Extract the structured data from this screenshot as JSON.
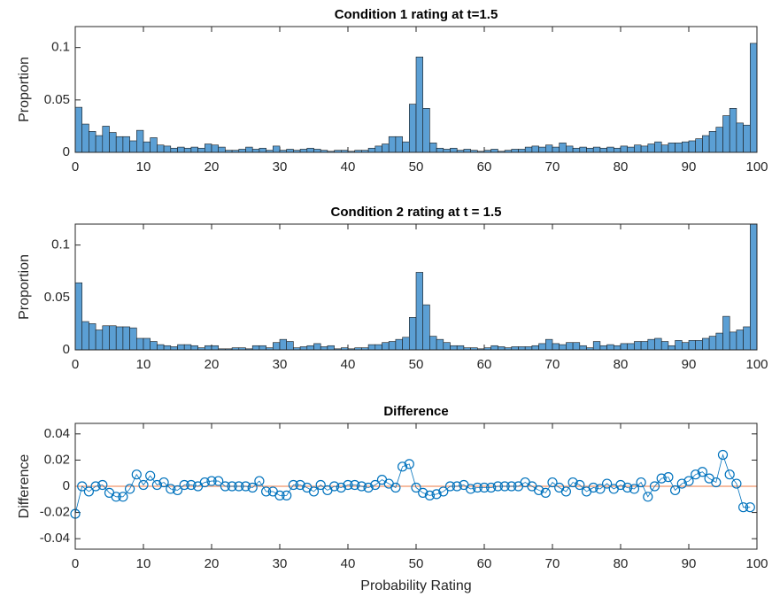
{
  "chart_data": [
    {
      "type": "histogram",
      "title": "Condition 1 rating at t=1.5",
      "ylabel": "Proportion",
      "color": "#5b9fd4",
      "bins": [
        0,
        1,
        2,
        3,
        4,
        5,
        6,
        7,
        8,
        9,
        10,
        11,
        12,
        13,
        14,
        15,
        16,
        17,
        18,
        19,
        20,
        21,
        22,
        23,
        24,
        25,
        26,
        27,
        28,
        29,
        30,
        31,
        32,
        33,
        34,
        35,
        36,
        37,
        38,
        39,
        40,
        41,
        42,
        43,
        44,
        45,
        46,
        47,
        48,
        49,
        50,
        51,
        52,
        53,
        54,
        55,
        56,
        57,
        58,
        59,
        60,
        61,
        62,
        63,
        64,
        65,
        66,
        67,
        68,
        69,
        70,
        71,
        72,
        73,
        74,
        75,
        76,
        77,
        78,
        79,
        80,
        81,
        82,
        83,
        84,
        85,
        86,
        87,
        88,
        89,
        90,
        91,
        92,
        93,
        94,
        95,
        96,
        97,
        98,
        99,
        100
      ],
      "values": [
        0.043,
        0.027,
        0.02,
        0.016,
        0.025,
        0.019,
        0.015,
        0.015,
        0.011,
        0.021,
        0.01,
        0.014,
        0.007,
        0.006,
        0.004,
        0.005,
        0.004,
        0.005,
        0.004,
        0.008,
        0.007,
        0.005,
        0.002,
        0.002,
        0.003,
        0.005,
        0.003,
        0.004,
        0.002,
        0.006,
        0.002,
        0.003,
        0.002,
        0.003,
        0.004,
        0.003,
        0.002,
        0.001,
        0.002,
        0.002,
        0.001,
        0.002,
        0.002,
        0.004,
        0.006,
        0.008,
        0.015,
        0.015,
        0.01,
        0.046,
        0.091,
        0.042,
        0.009,
        0.004,
        0.003,
        0.004,
        0.002,
        0.003,
        0.002,
        0.001,
        0.002,
        0.003,
        0.001,
        0.002,
        0.003,
        0.003,
        0.005,
        0.006,
        0.005,
        0.007,
        0.005,
        0.009,
        0.006,
        0.004,
        0.005,
        0.004,
        0.005,
        0.004,
        0.005,
        0.004,
        0.006,
        0.005,
        0.007,
        0.006,
        0.008,
        0.01,
        0.007,
        0.009,
        0.009,
        0.01,
        0.011,
        0.013,
        0.016,
        0.02,
        0.024,
        0.035,
        0.042,
        0.028,
        0.026,
        0.104
      ],
      "xlim": [
        0,
        100
      ],
      "xticks": [
        0,
        10,
        20,
        30,
        40,
        50,
        60,
        70,
        80,
        90,
        100
      ],
      "ylim": [
        0,
        0.12
      ],
      "yticks": [
        0,
        0.05,
        0.1
      ]
    },
    {
      "type": "histogram",
      "title": "Condition 2 rating at t = 1.5",
      "ylabel": "Proportion",
      "color": "#5b9fd4",
      "bins": [
        0,
        1,
        2,
        3,
        4,
        5,
        6,
        7,
        8,
        9,
        10,
        11,
        12,
        13,
        14,
        15,
        16,
        17,
        18,
        19,
        20,
        21,
        22,
        23,
        24,
        25,
        26,
        27,
        28,
        29,
        30,
        31,
        32,
        33,
        34,
        35,
        36,
        37,
        38,
        39,
        40,
        41,
        42,
        43,
        44,
        45,
        46,
        47,
        48,
        49,
        50,
        51,
        52,
        53,
        54,
        55,
        56,
        57,
        58,
        59,
        60,
        61,
        62,
        63,
        64,
        65,
        66,
        67,
        68,
        69,
        70,
        71,
        72,
        73,
        74,
        75,
        76,
        77,
        78,
        79,
        80,
        81,
        82,
        83,
        84,
        85,
        86,
        87,
        88,
        89,
        90,
        91,
        92,
        93,
        94,
        95,
        96,
        97,
        98,
        99,
        100
      ],
      "values": [
        0.064,
        0.027,
        0.025,
        0.019,
        0.023,
        0.023,
        0.022,
        0.022,
        0.021,
        0.011,
        0.011,
        0.008,
        0.005,
        0.004,
        0.003,
        0.005,
        0.005,
        0.004,
        0.002,
        0.004,
        0.004,
        0.001,
        0.001,
        0.002,
        0.002,
        0.001,
        0.004,
        0.004,
        0.002,
        0.007,
        0.01,
        0.008,
        0.002,
        0.003,
        0.004,
        0.006,
        0.003,
        0.004,
        0.001,
        0.002,
        0.001,
        0.002,
        0.002,
        0.005,
        0.005,
        0.007,
        0.008,
        0.01,
        0.012,
        0.031,
        0.074,
        0.043,
        0.013,
        0.01,
        0.007,
        0.004,
        0.004,
        0.002,
        0.002,
        0.001,
        0.002,
        0.004,
        0.003,
        0.002,
        0.003,
        0.003,
        0.003,
        0.004,
        0.006,
        0.01,
        0.006,
        0.005,
        0.007,
        0.007,
        0.004,
        0.002,
        0.008,
        0.004,
        0.005,
        0.004,
        0.006,
        0.006,
        0.008,
        0.008,
        0.01,
        0.011,
        0.008,
        0.004,
        0.009,
        0.007,
        0.009,
        0.009,
        0.011,
        0.013,
        0.016,
        0.032,
        0.017,
        0.019,
        0.022,
        0.12
      ],
      "xlim": [
        0,
        100
      ],
      "xticks": [
        0,
        10,
        20,
        30,
        40,
        50,
        60,
        70,
        80,
        90,
        100
      ],
      "ylim": [
        0,
        0.12
      ],
      "yticks": [
        0,
        0.05,
        0.1
      ]
    },
    {
      "type": "line",
      "title": "Difference",
      "ylabel": "Difference",
      "xlabel": "Probability Rating",
      "x": [
        0,
        1,
        2,
        3,
        4,
        5,
        6,
        7,
        8,
        9,
        10,
        11,
        12,
        13,
        14,
        15,
        16,
        17,
        18,
        19,
        20,
        21,
        22,
        23,
        24,
        25,
        26,
        27,
        28,
        29,
        30,
        31,
        32,
        33,
        34,
        35,
        36,
        37,
        38,
        39,
        40,
        41,
        42,
        43,
        44,
        45,
        46,
        47,
        48,
        49,
        50,
        51,
        52,
        53,
        54,
        55,
        56,
        57,
        58,
        59,
        60,
        61,
        62,
        63,
        64,
        65,
        66,
        67,
        68,
        69,
        70,
        71,
        72,
        73,
        74,
        75,
        76,
        77,
        78,
        79,
        80,
        81,
        82,
        83,
        84,
        85,
        86,
        87,
        88,
        89,
        90,
        91,
        92,
        93,
        94,
        95,
        96,
        97,
        98,
        99
      ],
      "series": [
        {
          "color": "#0072bd",
          "values": [
            -0.021,
            0,
            -0.004,
            0,
            0.001,
            -0.005,
            -0.008,
            -0.008,
            -0.002,
            0.009,
            0.001,
            0.008,
            0.001,
            0.003,
            -0.002,
            -0.003,
            0.001,
            0.001,
            0,
            0.003,
            0.004,
            0.004,
            0,
            0,
            0,
            0,
            -0.001,
            0.004,
            -0.004,
            -0.004,
            -0.007,
            -0.007,
            0.001,
            0.001,
            -0.001,
            -0.004,
            0.001,
            -0.003,
            0,
            -0.001,
            0.001,
            0.001,
            0,
            -0.001,
            0.001,
            0.005,
            0.002,
            -0.001,
            0.015,
            0.017,
            -0.001,
            -0.005,
            -0.007,
            -0.006,
            -0.004,
            0,
            0,
            0.001,
            -0.002,
            -0.001,
            -0.001,
            -0.001,
            0,
            0,
            0,
            0,
            0.003,
            0,
            -0.003,
            -0.005,
            0.003,
            -0.001,
            -0.004,
            0.003,
            0.001,
            -0.004,
            -0.001,
            -0.002,
            0.002,
            -0.002,
            0.001,
            -0.001,
            -0.002,
            0.003,
            -0.008,
            0,
            0.006,
            0.007,
            -0.003,
            0.002,
            0.004,
            0.009,
            0.011,
            0.006,
            0.003,
            0.024,
            0.009,
            0.002,
            -0.016,
            -0.016
          ]
        }
      ],
      "reference_line": {
        "value": 0,
        "color": "#f4a582"
      },
      "xlim": [
        0,
        100
      ],
      "xticks": [
        0,
        10,
        20,
        30,
        40,
        50,
        60,
        70,
        80,
        90,
        100
      ],
      "ylim": [
        -0.048,
        0.048
      ],
      "yticks": [
        -0.04,
        -0.02,
        0,
        0.02,
        0.04
      ]
    }
  ]
}
